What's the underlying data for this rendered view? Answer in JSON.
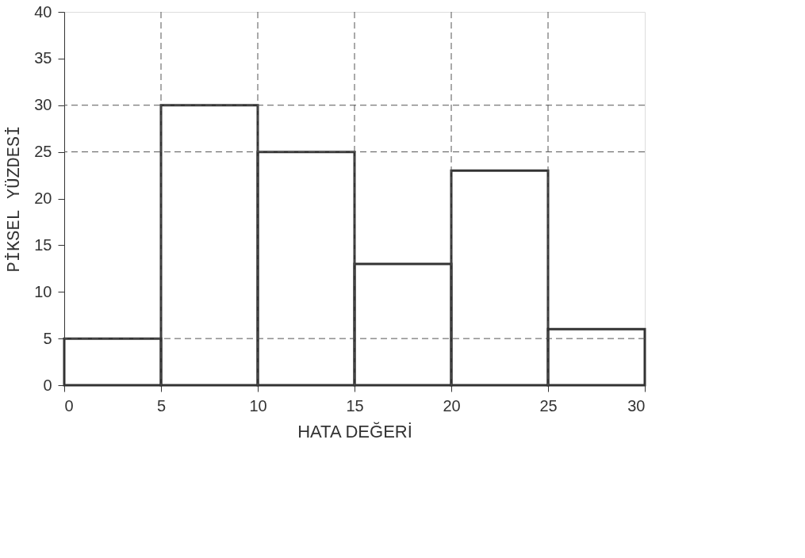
{
  "chart_data": {
    "type": "histogram",
    "xlabel": "HATA DEĞERİ",
    "ylabel": "PİKSEL YÜZDESİ",
    "bins": [
      0,
      5,
      10,
      15,
      20,
      25,
      30
    ],
    "values": [
      5,
      30,
      25,
      13,
      23,
      6
    ],
    "color": "#333333",
    "xlim": [
      0,
      30
    ],
    "xticks": [
      0,
      5,
      10,
      15,
      20,
      25,
      30
    ],
    "ylim": [
      0,
      40
    ],
    "yticks": [
      0,
      5,
      10,
      15,
      20,
      25,
      30,
      35,
      40
    ],
    "ref_lines": [
      {
        "axis": "y",
        "value": 30,
        "line_style": "dashed"
      },
      {
        "axis": "y",
        "value": 25,
        "line_style": "dashed"
      },
      {
        "axis": "y",
        "value": 5,
        "line_style": "dashed"
      },
      {
        "axis": "x",
        "value": 5,
        "line_style": "dashed"
      },
      {
        "axis": "x",
        "value": 10,
        "line_style": "dashed"
      },
      {
        "axis": "x",
        "value": 15,
        "line_style": "dashed"
      },
      {
        "axis": "x",
        "value": 20,
        "line_style": "dashed"
      },
      {
        "axis": "x",
        "value": 25,
        "line_style": "dashed"
      }
    ],
    "grid": false
  }
}
